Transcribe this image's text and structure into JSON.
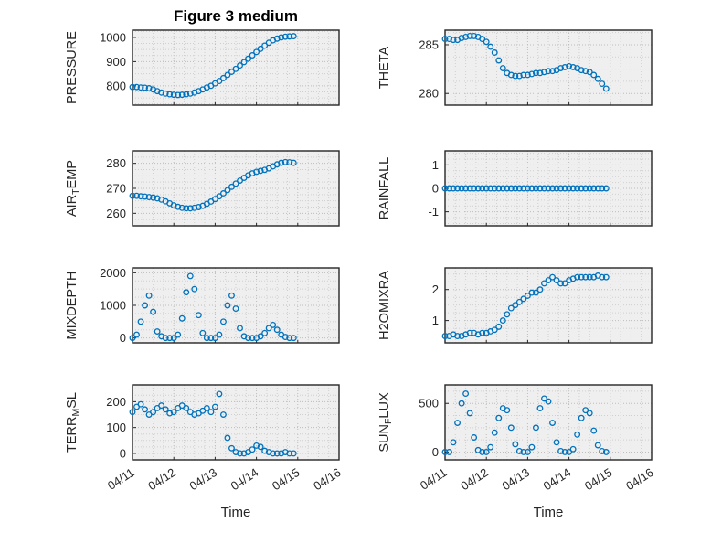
{
  "figure": {
    "title": "Figure 3 medium",
    "xlabel": "Time",
    "colors": {
      "marker": "#0072BD",
      "axis": "#262626",
      "text": "#262626",
      "grid_minor": "#cfcfcf",
      "grid_major": "#bdbdbd",
      "plot_bg": "#efefef",
      "page_bg": "#ffffff"
    }
  },
  "chart_data": {
    "type": "scatter",
    "marker": "open-circle",
    "legend": "none",
    "grid": "dotted-minor-and-major",
    "x_tick_labels": [
      "04/11",
      "04/12",
      "04/13",
      "04/14",
      "04/15",
      "04/16"
    ],
    "x_tick_values": [
      0,
      1,
      2,
      3,
      4,
      5
    ],
    "xlim": [
      0,
      5
    ],
    "x": [
      0,
      0.1,
      0.2,
      0.3,
      0.4,
      0.5,
      0.6,
      0.7,
      0.8,
      0.9,
      1.0,
      1.1,
      1.2,
      1.3,
      1.4,
      1.5,
      1.6,
      1.7,
      1.8,
      1.9,
      2.0,
      2.1,
      2.2,
      2.3,
      2.4,
      2.5,
      2.6,
      2.7,
      2.8,
      2.9,
      3.0,
      3.1,
      3.2,
      3.3,
      3.4,
      3.5,
      3.6,
      3.7,
      3.8,
      3.9
    ],
    "charts": [
      {
        "name": "PRESSURE",
        "label_text": "PRESSURE",
        "ylabel": {
          "pre": "PRESSURE",
          "sub": "",
          "post": ""
        },
        "yticks": [
          800,
          900,
          1000
        ],
        "ylim": [
          720,
          1030
        ],
        "y": [
          795,
          795,
          793,
          792,
          790,
          785,
          778,
          772,
          768,
          765,
          763,
          762,
          763,
          765,
          768,
          772,
          778,
          785,
          793,
          800,
          810,
          820,
          832,
          845,
          858,
          870,
          884,
          898,
          912,
          926,
          940,
          953,
          966,
          978,
          988,
          995,
          1000,
          1003,
          1004,
          1005
        ]
      },
      {
        "name": "THETA",
        "label_text": "THETA",
        "ylabel": {
          "pre": "THETA",
          "sub": "",
          "post": ""
        },
        "yticks": [
          280,
          285
        ],
        "ylim": [
          278.8,
          286.5
        ],
        "y": [
          285.6,
          285.6,
          285.5,
          285.5,
          285.7,
          285.8,
          285.9,
          285.9,
          285.8,
          285.6,
          285.3,
          284.8,
          284.2,
          283.4,
          282.6,
          282.1,
          281.9,
          281.8,
          281.8,
          281.9,
          281.9,
          282.0,
          282.1,
          282.1,
          282.2,
          282.3,
          282.3,
          282.4,
          282.6,
          282.7,
          282.8,
          282.7,
          282.6,
          282.4,
          282.3,
          282.2,
          281.9,
          281.5,
          281.0,
          280.5
        ]
      },
      {
        "name": "AIR_TEMP",
        "label_text": "AIR_TEMP",
        "ylabel": {
          "pre": "AIR",
          "sub": "T",
          "post": "EMP"
        },
        "yticks": [
          260,
          270,
          280
        ],
        "ylim": [
          255,
          285
        ],
        "y": [
          267,
          267,
          266.8,
          266.7,
          266.5,
          266.3,
          266,
          265.5,
          264.8,
          264,
          263.2,
          262.6,
          262.2,
          262,
          262,
          262.2,
          262.5,
          263,
          263.8,
          264.7,
          265.7,
          266.8,
          268,
          269.3,
          270.6,
          271.9,
          273.1,
          274.2,
          275.2,
          276,
          276.6,
          277,
          277.4,
          278,
          278.8,
          279.6,
          280.2,
          280.5,
          280.4,
          280.2
        ]
      },
      {
        "name": "RAINFALL",
        "label_text": "RAINFALL",
        "ylabel": {
          "pre": "RAINFALL",
          "sub": "",
          "post": ""
        },
        "yticks": [
          -1,
          0,
          1
        ],
        "ylim": [
          -1.6,
          1.6
        ],
        "y": [
          0,
          0,
          0,
          0,
          0,
          0,
          0,
          0,
          0,
          0,
          0,
          0,
          0,
          0,
          0,
          0,
          0,
          0,
          0,
          0,
          0,
          0,
          0,
          0,
          0,
          0,
          0,
          0,
          0,
          0,
          0,
          0,
          0,
          0,
          0,
          0,
          0,
          0,
          0,
          0
        ]
      },
      {
        "name": "MIXDEPTH",
        "label_text": "MIXDEPTH",
        "ylabel": {
          "pre": "MIXDEPTH",
          "sub": "",
          "post": ""
        },
        "yticks": [
          0,
          1000,
          2000
        ],
        "ylim": [
          -150,
          2150
        ],
        "y": [
          0,
          100,
          500,
          1000,
          1300,
          800,
          200,
          50,
          0,
          0,
          0,
          100,
          600,
          1400,
          1900,
          1500,
          700,
          150,
          0,
          0,
          0,
          100,
          500,
          1000,
          1300,
          900,
          300,
          50,
          0,
          0,
          0,
          50,
          150,
          300,
          400,
          250,
          100,
          30,
          0,
          0
        ]
      },
      {
        "name": "H2OMIXRA",
        "label_text": "H2OMIXRA",
        "ylabel": {
          "pre": "H2OMIXRA",
          "sub": "",
          "post": ""
        },
        "yticks": [
          1,
          2
        ],
        "ylim": [
          0.28,
          2.7
        ],
        "y": [
          0.5,
          0.5,
          0.55,
          0.5,
          0.5,
          0.55,
          0.6,
          0.6,
          0.55,
          0.6,
          0.6,
          0.65,
          0.7,
          0.8,
          1.0,
          1.2,
          1.4,
          1.5,
          1.6,
          1.7,
          1.8,
          1.9,
          1.9,
          2.0,
          2.2,
          2.3,
          2.4,
          2.3,
          2.2,
          2.2,
          2.3,
          2.35,
          2.4,
          2.4,
          2.4,
          2.4,
          2.4,
          2.45,
          2.4,
          2.4
        ]
      },
      {
        "name": "TERR_MSL",
        "label_text": "TERR_MSL",
        "ylabel": {
          "pre": "TERR",
          "sub": "M",
          "post": "SL"
        },
        "yticks": [
          0,
          100,
          200
        ],
        "ylim": [
          -25,
          265
        ],
        "y": [
          160,
          180,
          190,
          170,
          150,
          160,
          175,
          185,
          170,
          155,
          160,
          175,
          185,
          175,
          160,
          150,
          155,
          165,
          175,
          160,
          180,
          230,
          150,
          60,
          20,
          5,
          0,
          0,
          5,
          15,
          30,
          25,
          10,
          5,
          0,
          0,
          0,
          5,
          0,
          0
        ]
      },
      {
        "name": "SUN_FLUX",
        "label_text": "SUN_FLUX",
        "ylabel": {
          "pre": "SUN",
          "sub": "F",
          "post": "LUX"
        },
        "yticks": [
          0,
          500
        ],
        "ylim": [
          -80,
          690
        ],
        "y": [
          0,
          0,
          100,
          300,
          500,
          600,
          400,
          150,
          20,
          0,
          0,
          50,
          200,
          350,
          450,
          430,
          250,
          80,
          10,
          0,
          0,
          50,
          250,
          450,
          550,
          520,
          300,
          100,
          10,
          0,
          0,
          30,
          180,
          350,
          430,
          400,
          220,
          70,
          10,
          0
        ]
      }
    ]
  }
}
